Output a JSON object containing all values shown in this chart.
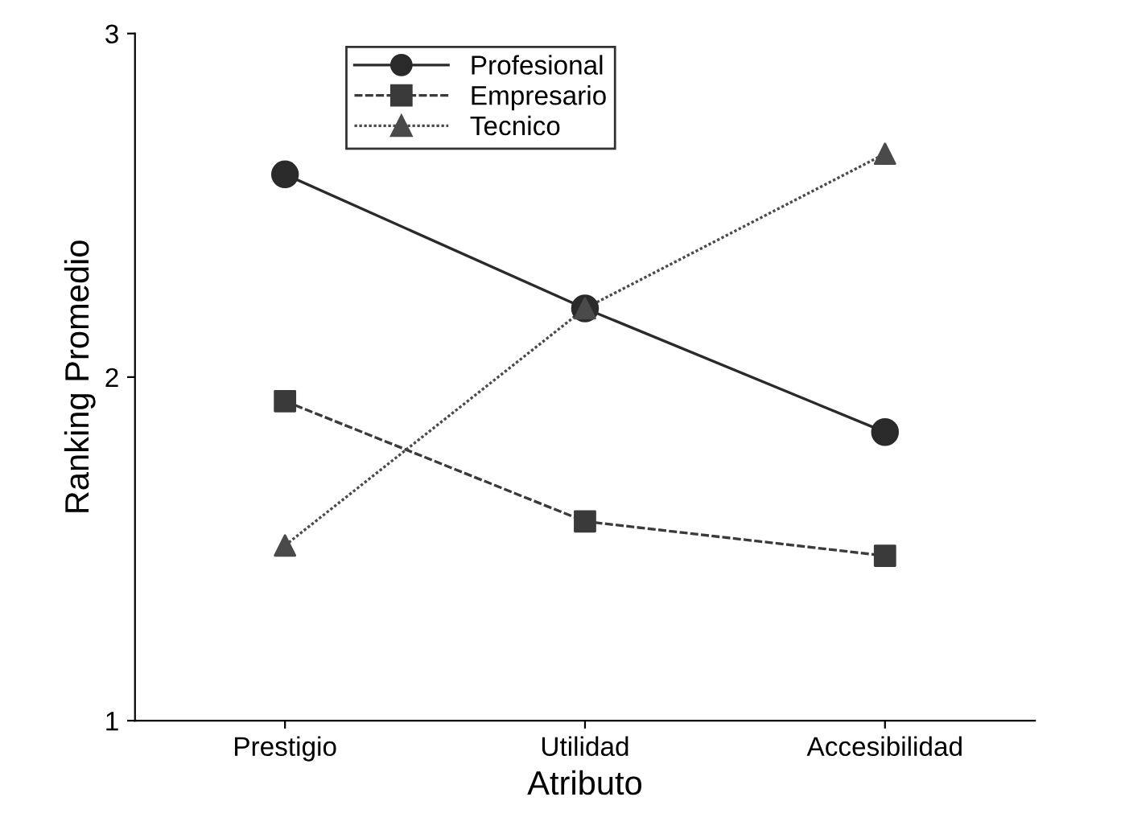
{
  "chart_data": {
    "type": "line",
    "xlabel": "Atributo",
    "ylabel": "Ranking Promedio",
    "categories": [
      "Prestigio",
      "Utilidad",
      "Accesibilidad"
    ],
    "series": [
      {
        "name": "Profesional",
        "color": "#2a2a2a",
        "values": [
          2.59,
          2.2,
          1.84
        ],
        "marker": "circle",
        "line_style": "solid"
      },
      {
        "name": "Empresario",
        "color": "#3a3a3a",
        "values": [
          1.93,
          1.58,
          1.48
        ],
        "marker": "square",
        "line_style": "dashed"
      },
      {
        "name": "Tecnico",
        "color": "#4a4a4a",
        "values": [
          1.51,
          2.2,
          2.65
        ],
        "marker": "triangle",
        "line_style": "dotted"
      }
    ],
    "ylim": [
      1,
      3
    ],
    "yticks": [
      1,
      2,
      3
    ],
    "grid": false,
    "legend": "top left"
  }
}
